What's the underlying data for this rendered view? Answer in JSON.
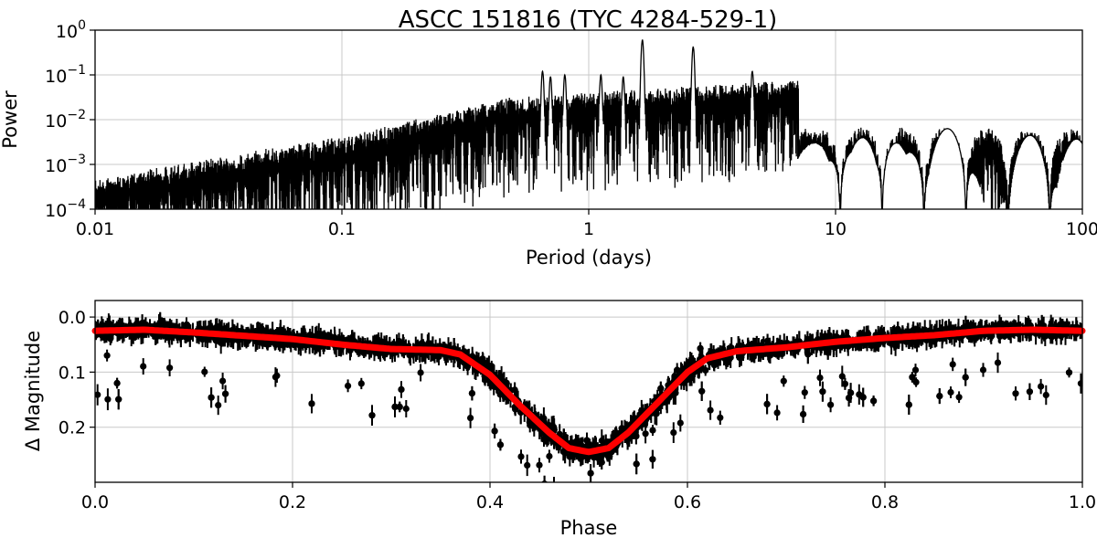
{
  "chart_data": [
    {
      "type": "line",
      "title": "ASCC 151816  (TYC 4284-529-1)",
      "xlabel": "Period (days)",
      "ylabel": "Power",
      "xscale": "log",
      "yscale": "log",
      "xlim": [
        0.01,
        100
      ],
      "ylim": [
        0.0001,
        1
      ],
      "x_ticks": [
        {
          "value": 0.01,
          "label": "0.01"
        },
        {
          "value": 0.1,
          "label": "0.1"
        },
        {
          "value": 1,
          "label": "1"
        },
        {
          "value": 10,
          "label": "10"
        },
        {
          "value": 100,
          "label": "100"
        }
      ],
      "y_ticks": [
        {
          "value": 1,
          "base": "10",
          "exp": "0"
        },
        {
          "value": 0.1,
          "base": "10",
          "exp": "−1"
        },
        {
          "value": 0.01,
          "base": "10",
          "exp": "−2"
        },
        {
          "value": 0.001,
          "base": "10",
          "exp": "−3"
        },
        {
          "value": 0.0001,
          "base": "10",
          "exp": "−4"
        }
      ],
      "grid": true,
      "line_color": "#000000",
      "peaks": [
        {
          "period": 0.65,
          "power": 0.12
        },
        {
          "period": 0.7,
          "power": 0.09
        },
        {
          "period": 0.8,
          "power": 0.1
        },
        {
          "period": 1.12,
          "power": 0.1
        },
        {
          "period": 1.38,
          "power": 0.09
        },
        {
          "period": 1.65,
          "power": 0.6
        },
        {
          "period": 2.65,
          "power": 0.42
        },
        {
          "period": 4.6,
          "power": 0.12
        },
        {
          "period": 6.3,
          "power": 0.012
        },
        {
          "period": 8.2,
          "power": 0.003
        },
        {
          "period": 10.8,
          "power": 0.003
        },
        {
          "period": 13,
          "power": 0.004
        },
        {
          "period": 16.5,
          "power": 0.004
        },
        {
          "period": 21.5,
          "power": 0.0025
        },
        {
          "period": 29,
          "power": 0.0065
        },
        {
          "period": 62,
          "power": 0.0045
        },
        {
          "period": 100,
          "power": 0.0045
        }
      ]
    },
    {
      "type": "scatter",
      "xlabel": "Phase",
      "ylabel": "Δ Magnitude",
      "xlim": [
        0.0,
        1.0
      ],
      "ylim": [
        0.3,
        -0.03
      ],
      "y_inverted": true,
      "x_ticks": [
        {
          "value": 0.0,
          "label": "0.0"
        },
        {
          "value": 0.2,
          "label": "0.2"
        },
        {
          "value": 0.4,
          "label": "0.4"
        },
        {
          "value": 0.6,
          "label": "0.6"
        },
        {
          "value": 0.8,
          "label": "0.8"
        },
        {
          "value": 1.0,
          "label": "1.0"
        }
      ],
      "y_ticks": [
        {
          "value": 0.0,
          "label": "0.0"
        },
        {
          "value": 0.1,
          "label": "0.1"
        },
        {
          "value": 0.2,
          "label": "0.2"
        }
      ],
      "grid": true,
      "points_color": "#000000",
      "model_color": "#ff0000",
      "model_curve": {
        "phase": [
          0.0,
          0.05,
          0.1,
          0.15,
          0.2,
          0.25,
          0.3,
          0.35,
          0.37,
          0.4,
          0.43,
          0.46,
          0.48,
          0.5,
          0.52,
          0.54,
          0.57,
          0.6,
          0.62,
          0.65,
          0.7,
          0.75,
          0.8,
          0.85,
          0.9,
          0.95,
          1.0
        ],
        "dmag": [
          0.025,
          0.023,
          0.028,
          0.034,
          0.04,
          0.05,
          0.058,
          0.06,
          0.068,
          0.105,
          0.16,
          0.21,
          0.238,
          0.245,
          0.238,
          0.21,
          0.155,
          0.1,
          0.075,
          0.062,
          0.055,
          0.045,
          0.038,
          0.033,
          0.025,
          0.023,
          0.025
        ]
      }
    }
  ]
}
